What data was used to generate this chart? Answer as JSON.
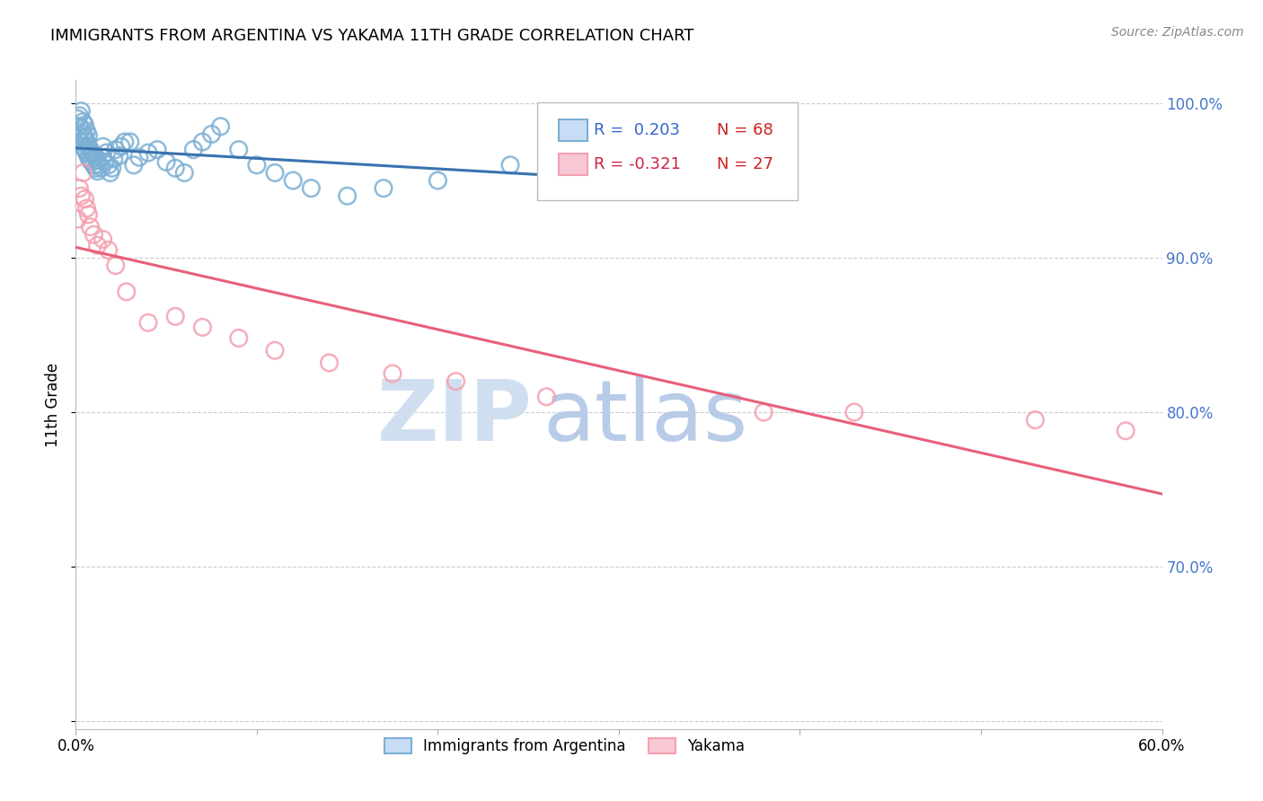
{
  "title": "IMMIGRANTS FROM ARGENTINA VS YAKAMA 11TH GRADE CORRELATION CHART",
  "source_text": "Source: ZipAtlas.com",
  "ylabel": "11th Grade",
  "xlim": [
    0.0,
    0.6
  ],
  "ylim": [
    0.595,
    1.015
  ],
  "xticks": [
    0.0,
    0.1,
    0.2,
    0.3,
    0.4,
    0.5,
    0.6
  ],
  "xticklabels": [
    "0.0%",
    "",
    "",
    "",
    "",
    "",
    "60.0%"
  ],
  "yticks": [
    0.6,
    0.7,
    0.8,
    0.9,
    1.0
  ],
  "yticklabels": [
    "",
    "70.0%",
    "80.0%",
    "90.0%",
    "100.0%"
  ],
  "legend_R1": "R =  0.203",
  "legend_N1": "N = 68",
  "legend_R2": "R = -0.321",
  "legend_N2": "N = 27",
  "blue_scatter_color": "#7bafd4",
  "pink_scatter_color": "#f4a0b0",
  "blue_line_color": "#3a72b0",
  "pink_line_color": "#e8607a",
  "blue_legend_face": "#c8dcf5",
  "pink_legend_face": "#f8c8d4",
  "watermark_zip": "ZIP",
  "watermark_atlas": "atlas",
  "watermark_color": "#d0dff0",
  "argentina_x": [
    0.001,
    0.001,
    0.002,
    0.002,
    0.002,
    0.003,
    0.003,
    0.003,
    0.004,
    0.004,
    0.004,
    0.005,
    0.005,
    0.005,
    0.006,
    0.006,
    0.006,
    0.007,
    0.007,
    0.007,
    0.008,
    0.008,
    0.009,
    0.009,
    0.01,
    0.01,
    0.011,
    0.011,
    0.012,
    0.012,
    0.013,
    0.014,
    0.015,
    0.015,
    0.016,
    0.017,
    0.018,
    0.019,
    0.02,
    0.021,
    0.022,
    0.024,
    0.025,
    0.027,
    0.03,
    0.032,
    0.035,
    0.04,
    0.045,
    0.05,
    0.055,
    0.06,
    0.065,
    0.07,
    0.075,
    0.08,
    0.09,
    0.1,
    0.11,
    0.12,
    0.13,
    0.15,
    0.17,
    0.2,
    0.24,
    0.28,
    0.32,
    0.35
  ],
  "argentina_y": [
    0.98,
    0.99,
    0.978,
    0.985,
    0.992,
    0.975,
    0.983,
    0.995,
    0.972,
    0.98,
    0.988,
    0.97,
    0.978,
    0.986,
    0.968,
    0.975,
    0.982,
    0.965,
    0.972,
    0.979,
    0.963,
    0.97,
    0.962,
    0.968,
    0.96,
    0.967,
    0.958,
    0.965,
    0.956,
    0.963,
    0.96,
    0.958,
    0.972,
    0.965,
    0.962,
    0.968,
    0.96,
    0.955,
    0.958,
    0.964,
    0.97,
    0.966,
    0.972,
    0.975,
    0.975,
    0.96,
    0.965,
    0.968,
    0.97,
    0.962,
    0.958,
    0.955,
    0.97,
    0.975,
    0.98,
    0.985,
    0.97,
    0.96,
    0.955,
    0.95,
    0.945,
    0.94,
    0.945,
    0.95,
    0.96,
    0.955,
    0.96,
    0.965
  ],
  "yakama_x": [
    0.001,
    0.002,
    0.003,
    0.004,
    0.005,
    0.006,
    0.007,
    0.008,
    0.01,
    0.012,
    0.015,
    0.018,
    0.022,
    0.028,
    0.04,
    0.055,
    0.07,
    0.09,
    0.11,
    0.14,
    0.175,
    0.21,
    0.26,
    0.38,
    0.43,
    0.53,
    0.58
  ],
  "yakama_y": [
    0.925,
    0.945,
    0.94,
    0.955,
    0.938,
    0.932,
    0.928,
    0.92,
    0.915,
    0.908,
    0.912,
    0.905,
    0.895,
    0.878,
    0.858,
    0.862,
    0.855,
    0.848,
    0.84,
    0.832,
    0.825,
    0.82,
    0.81,
    0.8,
    0.8,
    0.795,
    0.788
  ]
}
